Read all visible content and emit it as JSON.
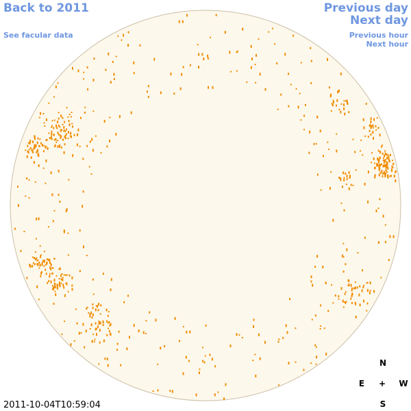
{
  "header": {
    "back_link": "Back to 2011",
    "facular_link": "See facular data",
    "previous_day": "Previous day",
    "next_day": "Next day",
    "previous_hour": "Previous hour",
    "next_hour": "Next hour"
  },
  "timestamp": "2011-10-04T10:59:04",
  "compass": {
    "north": "N",
    "east": "E",
    "center": "+",
    "west": "W",
    "south": "S"
  }
}
